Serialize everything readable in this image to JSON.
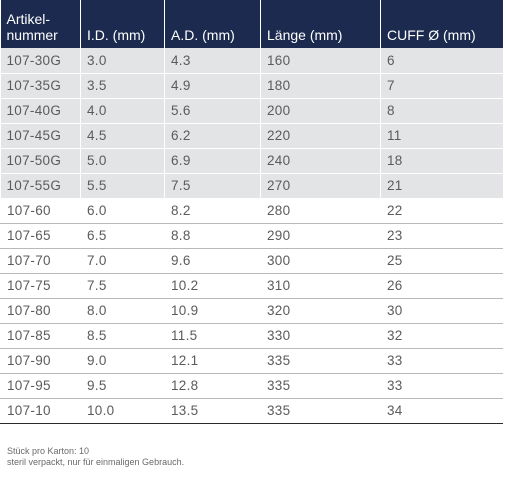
{
  "table": {
    "headers": [
      "Artikel-\nnummer",
      "I.D. (mm)",
      "A.D. (mm)",
      "Länge (mm)",
      "CUFF Ø (mm)"
    ],
    "shaded_rows": 6,
    "rows": [
      [
        "107-30G",
        "3.0",
        "4.3",
        "160",
        "6"
      ],
      [
        "107-35G",
        "3.5",
        "4.9",
        "180",
        "7"
      ],
      [
        "107-40G",
        "4.0",
        "5.6",
        "200",
        "8"
      ],
      [
        "107-45G",
        "4.5",
        "6.2",
        "220",
        "11"
      ],
      [
        "107-50G",
        "5.0",
        "6.9",
        "240",
        "18"
      ],
      [
        "107-55G",
        "5.5",
        "7.5",
        "270",
        "21"
      ],
      [
        "107-60",
        "6.0",
        "8.2",
        "280",
        "22"
      ],
      [
        "107-65",
        "6.5",
        "8.8",
        "290",
        "23"
      ],
      [
        "107-70",
        "7.0",
        "9.6",
        "300",
        "25"
      ],
      [
        "107-75",
        "7.5",
        "10.2",
        "310",
        "26"
      ],
      [
        "107-80",
        "8.0",
        "10.9",
        "320",
        "30"
      ],
      [
        "107-85",
        "8.5",
        "11.5",
        "330",
        "32"
      ],
      [
        "107-90",
        "9.0",
        "12.1",
        "335",
        "33"
      ],
      [
        "107-95",
        "9.5",
        "12.8",
        "335",
        "33"
      ],
      [
        "107-10",
        "10.0",
        "13.5",
        "335",
        "34"
      ]
    ]
  },
  "notes": {
    "line1": "Stück pro Karton: 10",
    "line2": "steril verpackt, nur für einmaligen Gebrauch."
  },
  "colors": {
    "header_bg": "#1b2a4e",
    "shaded_row_bg": "#e3e4e6",
    "text": "#5b5b5b"
  }
}
